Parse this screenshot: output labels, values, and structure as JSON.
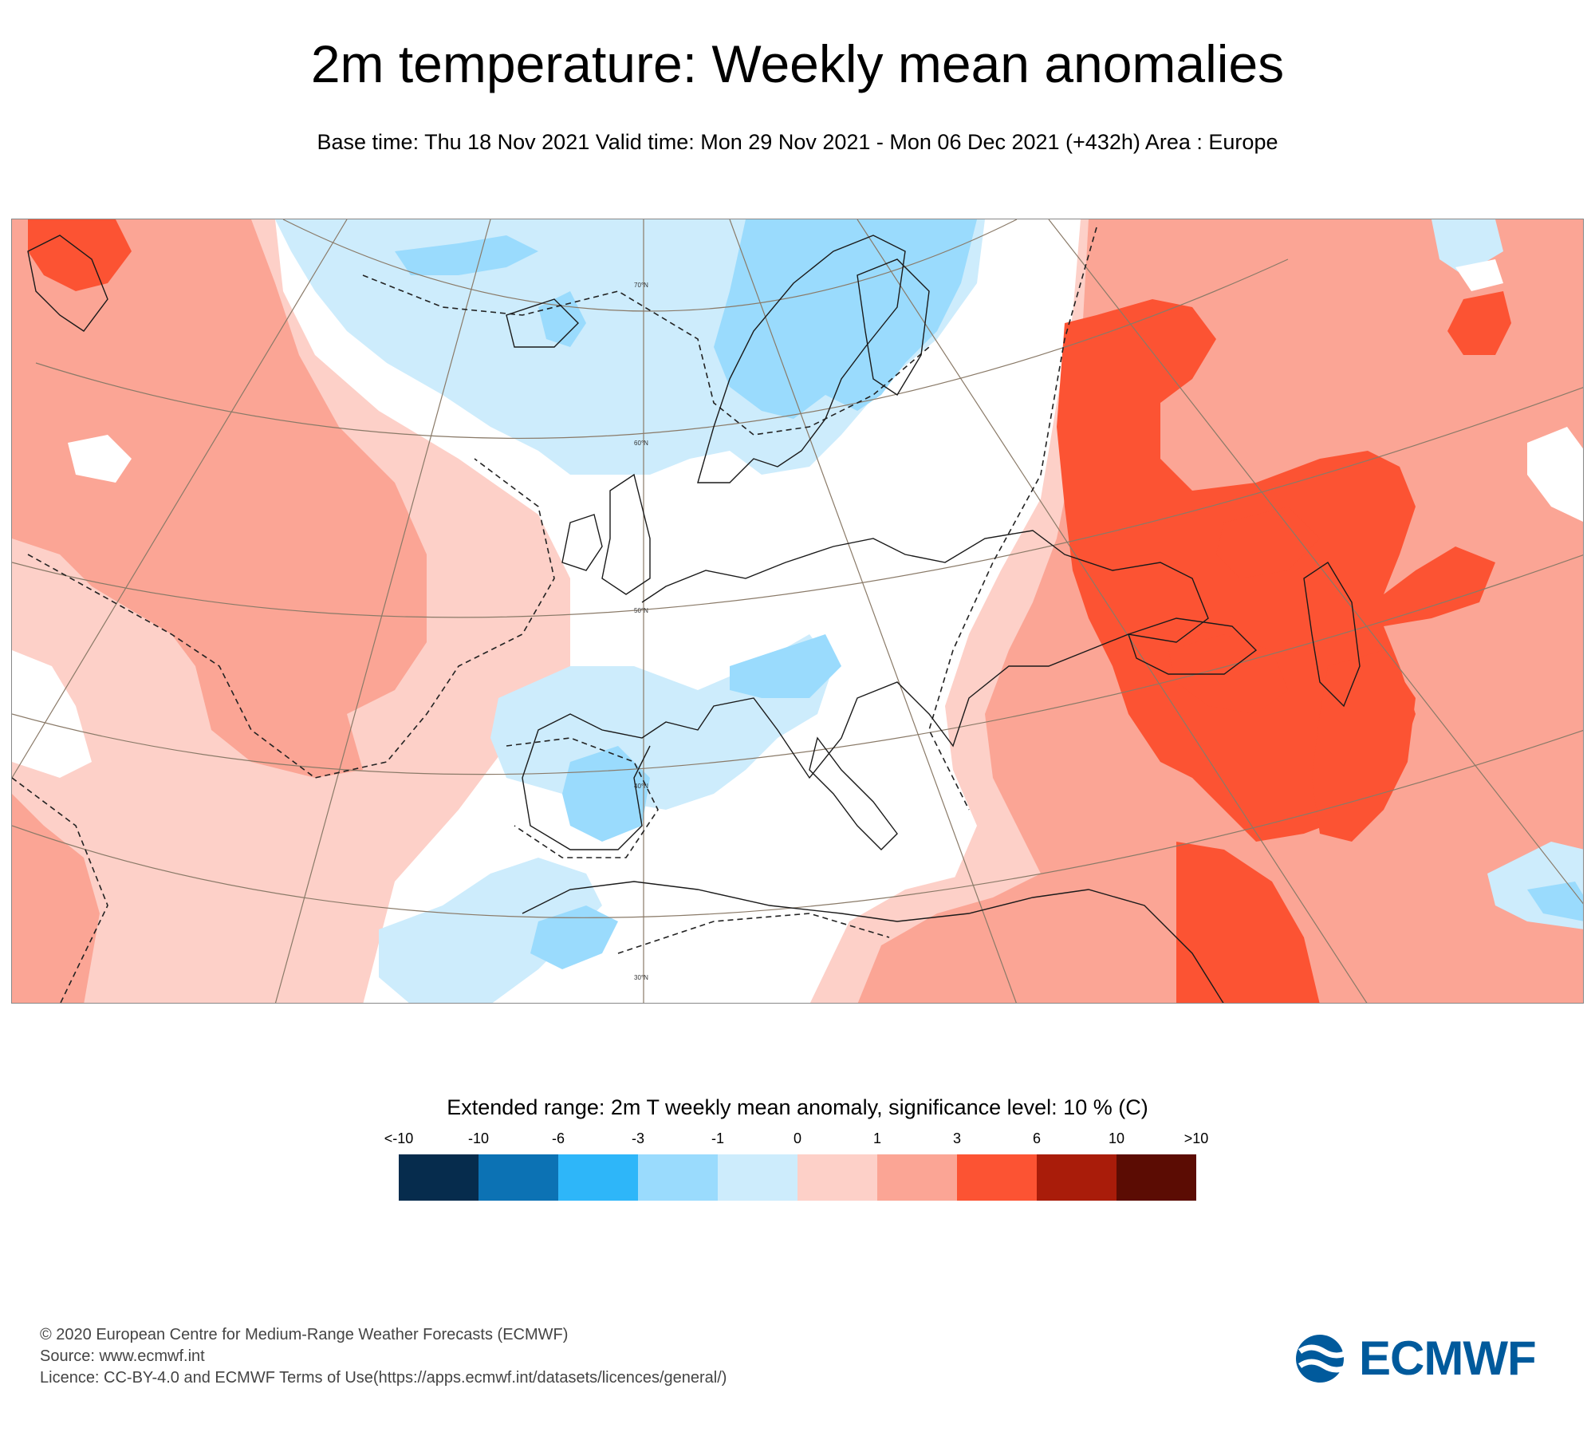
{
  "title": "2m temperature: Weekly mean anomalies",
  "subtitle": "Base time: Thu 18 Nov 2021 Valid time: Mon 29 Nov 2021 - Mon 06 Dec 2021 (+432h) Area : Europe",
  "map": {
    "latitude_labels": [
      "70°N",
      "60°N",
      "50°N",
      "40°N",
      "30°N"
    ]
  },
  "legend": {
    "title": "Extended range: 2m T weekly mean anomaly, significance level: 10 % (C)",
    "tick_labels": [
      "<-10",
      "-10",
      "-6",
      "-3",
      "-1",
      "0",
      "1",
      "3",
      "6",
      "10",
      ">10"
    ],
    "colors": [
      "#062c4d",
      "#0c72b4",
      "#2eb6f9",
      "#9adbfd",
      "#cdecfc",
      "#fdd0c8",
      "#fba595",
      "#fc5333",
      "#a91c0a",
      "#5b0c03"
    ]
  },
  "footer": {
    "copyright": "© 2020 European Centre for Medium-Range Weather Forecasts (ECMWF)",
    "source": "Source: www.ecmwf.int",
    "licence": "Licence: CC-BY-4.0 and ECMWF Terms of Use(https://apps.ecmwf.int/datasets/licences/general/)"
  },
  "logo": {
    "text": "ECMWF",
    "color": "#005a9c"
  }
}
